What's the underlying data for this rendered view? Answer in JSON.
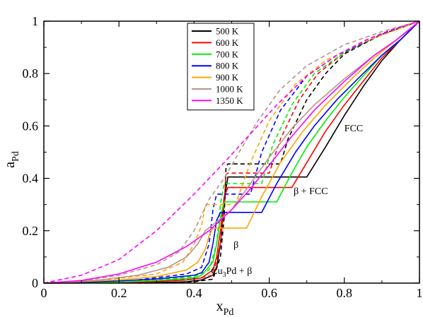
{
  "chart_data": {
    "type": "line",
    "xlabel": "x",
    "xlabel_sub": "Pd",
    "ylabel": "a",
    "ylabel_sub": "Pd",
    "xlim": [
      0,
      1
    ],
    "ylim": [
      0,
      1
    ],
    "xticks": [
      0,
      0.2,
      0.4,
      0.6,
      0.8,
      1
    ],
    "yticks": [
      0,
      0.2,
      0.4,
      0.6,
      0.8,
      1
    ],
    "xtick_labels": [
      "0",
      "0.2",
      "0.4",
      "0.6",
      "0.8",
      "1"
    ],
    "ytick_labels": [
      "0",
      "0.2",
      "0.4",
      "0.6",
      "0.8",
      "1"
    ],
    "legend_position": "top-center",
    "annotations": [
      {
        "text": "FCC",
        "x": 0.8,
        "y": 0.58
      },
      {
        "text": "β + FCC",
        "x": 0.665,
        "y": 0.34
      },
      {
        "text": "β",
        "x": 0.505,
        "y": 0.135
      },
      {
        "text_main": "Cu",
        "text_sub": "3",
        "text_rest": "Pd + β",
        "x": 0.445,
        "y": 0.035
      }
    ],
    "series": [
      {
        "name": "500 K",
        "color": "#000000",
        "solid": [
          [
            0,
            0
          ],
          [
            0.2,
            0.001
          ],
          [
            0.3,
            0.002
          ],
          [
            0.38,
            0.005
          ],
          [
            0.42,
            0.012
          ],
          [
            0.45,
            0.03
          ],
          [
            0.46,
            0.06
          ],
          [
            0.47,
            0.15
          ],
          [
            0.48,
            0.3
          ],
          [
            0.485,
            0.36
          ],
          [
            0.49,
            0.405
          ],
          [
            0.7,
            0.405
          ],
          [
            0.75,
            0.52
          ],
          [
            0.8,
            0.64
          ],
          [
            0.85,
            0.75
          ],
          [
            0.9,
            0.85
          ],
          [
            0.95,
            0.93
          ],
          [
            1,
            1
          ]
        ],
        "dashed": [
          [
            0.25,
            0.0
          ],
          [
            0.4,
            0.005
          ],
          [
            0.45,
            0.015
          ],
          [
            0.47,
            0.1
          ],
          [
            0.48,
            0.25
          ],
          [
            0.485,
            0.44
          ],
          [
            0.49,
            0.455
          ],
          [
            0.63,
            0.455
          ],
          [
            0.65,
            0.55
          ],
          [
            0.7,
            0.7
          ],
          [
            0.75,
            0.8
          ],
          [
            0.8,
            0.875
          ],
          [
            0.9,
            0.95
          ],
          [
            1,
            1
          ]
        ]
      },
      {
        "name": "600 K",
        "color": "#ff0000",
        "solid": [
          [
            0,
            0
          ],
          [
            0.2,
            0.002
          ],
          [
            0.3,
            0.006
          ],
          [
            0.38,
            0.012
          ],
          [
            0.42,
            0.02
          ],
          [
            0.45,
            0.05
          ],
          [
            0.46,
            0.1
          ],
          [
            0.47,
            0.2
          ],
          [
            0.48,
            0.33
          ],
          [
            0.49,
            0.365
          ],
          [
            0.66,
            0.365
          ],
          [
            0.7,
            0.46
          ],
          [
            0.75,
            0.58
          ],
          [
            0.8,
            0.68
          ],
          [
            0.85,
            0.77
          ],
          [
            0.9,
            0.86
          ],
          [
            0.95,
            0.93
          ],
          [
            1,
            1
          ]
        ],
        "dashed": [
          [
            0.25,
            0.004
          ],
          [
            0.4,
            0.015
          ],
          [
            0.45,
            0.03
          ],
          [
            0.47,
            0.15
          ],
          [
            0.48,
            0.3
          ],
          [
            0.485,
            0.415
          ],
          [
            0.49,
            0.42
          ],
          [
            0.6,
            0.42
          ],
          [
            0.63,
            0.55
          ],
          [
            0.68,
            0.7
          ],
          [
            0.73,
            0.8
          ],
          [
            0.8,
            0.88
          ],
          [
            0.9,
            0.95
          ],
          [
            1,
            1
          ]
        ]
      },
      {
        "name": "700 K",
        "color": "#00ee00",
        "solid": [
          [
            0,
            0
          ],
          [
            0.2,
            0.004
          ],
          [
            0.3,
            0.01
          ],
          [
            0.4,
            0.02
          ],
          [
            0.42,
            0.03
          ],
          [
            0.45,
            0.08
          ],
          [
            0.46,
            0.15
          ],
          [
            0.47,
            0.25
          ],
          [
            0.48,
            0.31
          ],
          [
            0.62,
            0.31
          ],
          [
            0.66,
            0.42
          ],
          [
            0.7,
            0.52
          ],
          [
            0.75,
            0.62
          ],
          [
            0.8,
            0.71
          ],
          [
            0.85,
            0.79
          ],
          [
            0.9,
            0.87
          ],
          [
            0.95,
            0.93
          ],
          [
            1,
            1
          ]
        ],
        "dashed": [
          [
            0.25,
            0.008
          ],
          [
            0.4,
            0.025
          ],
          [
            0.44,
            0.05
          ],
          [
            0.46,
            0.15
          ],
          [
            0.47,
            0.3
          ],
          [
            0.48,
            0.38
          ],
          [
            0.58,
            0.38
          ],
          [
            0.61,
            0.53
          ],
          [
            0.66,
            0.68
          ],
          [
            0.72,
            0.8
          ],
          [
            0.8,
            0.88
          ],
          [
            0.9,
            0.95
          ],
          [
            1,
            1
          ]
        ]
      },
      {
        "name": "800 K",
        "color": "#0000ff",
        "solid": [
          [
            0,
            0
          ],
          [
            0.2,
            0.008
          ],
          [
            0.3,
            0.016
          ],
          [
            0.4,
            0.03
          ],
          [
            0.42,
            0.04
          ],
          [
            0.44,
            0.08
          ],
          [
            0.45,
            0.15
          ],
          [
            0.46,
            0.24
          ],
          [
            0.47,
            0.27
          ],
          [
            0.58,
            0.27
          ],
          [
            0.62,
            0.38
          ],
          [
            0.67,
            0.5
          ],
          [
            0.72,
            0.6
          ],
          [
            0.78,
            0.7
          ],
          [
            0.85,
            0.8
          ],
          [
            0.9,
            0.87
          ],
          [
            0.95,
            0.93
          ],
          [
            1,
            1
          ]
        ],
        "dashed": [
          [
            0.25,
            0.012
          ],
          [
            0.38,
            0.035
          ],
          [
            0.42,
            0.06
          ],
          [
            0.44,
            0.15
          ],
          [
            0.45,
            0.28
          ],
          [
            0.46,
            0.34
          ],
          [
            0.55,
            0.34
          ],
          [
            0.58,
            0.5
          ],
          [
            0.63,
            0.66
          ],
          [
            0.7,
            0.79
          ],
          [
            0.78,
            0.87
          ],
          [
            0.9,
            0.95
          ],
          [
            1,
            1
          ]
        ]
      },
      {
        "name": "900 K",
        "color": "#ffa500",
        "solid": [
          [
            0,
            0
          ],
          [
            0.2,
            0.012
          ],
          [
            0.3,
            0.025
          ],
          [
            0.38,
            0.05
          ],
          [
            0.41,
            0.08
          ],
          [
            0.43,
            0.13
          ],
          [
            0.44,
            0.18
          ],
          [
            0.45,
            0.21
          ],
          [
            0.54,
            0.21
          ],
          [
            0.58,
            0.33
          ],
          [
            0.63,
            0.46
          ],
          [
            0.69,
            0.58
          ],
          [
            0.75,
            0.68
          ],
          [
            0.82,
            0.78
          ],
          [
            0.88,
            0.86
          ],
          [
            0.94,
            0.93
          ],
          [
            1,
            1
          ]
        ],
        "dashed": [
          [
            0.15,
            0.01
          ],
          [
            0.3,
            0.035
          ],
          [
            0.37,
            0.08
          ],
          [
            0.4,
            0.15
          ],
          [
            0.42,
            0.22
          ],
          [
            0.43,
            0.3
          ],
          [
            0.51,
            0.3
          ],
          [
            0.55,
            0.46
          ],
          [
            0.6,
            0.62
          ],
          [
            0.67,
            0.76
          ],
          [
            0.75,
            0.85
          ],
          [
            0.85,
            0.92
          ],
          [
            1,
            1
          ]
        ]
      },
      {
        "name": "1000 K",
        "color": "#b8928a",
        "solid": [
          [
            0,
            0
          ],
          [
            0.15,
            0.012
          ],
          [
            0.25,
            0.03
          ],
          [
            0.33,
            0.06
          ],
          [
            0.38,
            0.1
          ],
          [
            0.41,
            0.15
          ],
          [
            0.43,
            0.2
          ],
          [
            0.5,
            0.28
          ],
          [
            0.55,
            0.38
          ],
          [
            0.6,
            0.48
          ],
          [
            0.66,
            0.59
          ],
          [
            0.72,
            0.68
          ],
          [
            0.8,
            0.78
          ],
          [
            0.88,
            0.87
          ],
          [
            0.94,
            0.93
          ],
          [
            1,
            1
          ]
        ],
        "dashed": [
          [
            0.1,
            0.008
          ],
          [
            0.2,
            0.03
          ],
          [
            0.3,
            0.07
          ],
          [
            0.36,
            0.12
          ],
          [
            0.4,
            0.2
          ],
          [
            0.44,
            0.32
          ],
          [
            0.48,
            0.4
          ],
          [
            0.52,
            0.5
          ],
          [
            0.57,
            0.62
          ],
          [
            0.63,
            0.74
          ],
          [
            0.7,
            0.83
          ],
          [
            0.8,
            0.91
          ],
          [
            0.9,
            0.96
          ],
          [
            1,
            1
          ]
        ]
      },
      {
        "name": "1350 K",
        "color": "#ff00ff",
        "solid": [
          [
            0,
            0
          ],
          [
            0.1,
            0.01
          ],
          [
            0.2,
            0.035
          ],
          [
            0.3,
            0.08
          ],
          [
            0.38,
            0.14
          ],
          [
            0.44,
            0.2
          ],
          [
            0.5,
            0.28
          ],
          [
            0.55,
            0.36
          ],
          [
            0.6,
            0.45
          ],
          [
            0.66,
            0.56
          ],
          [
            0.72,
            0.66
          ],
          [
            0.8,
            0.77
          ],
          [
            0.88,
            0.87
          ],
          [
            0.94,
            0.93
          ],
          [
            1,
            1
          ]
        ],
        "dashed": [
          [
            0,
            0
          ],
          [
            0.1,
            0.03
          ],
          [
            0.2,
            0.09
          ],
          [
            0.3,
            0.2
          ],
          [
            0.4,
            0.34
          ],
          [
            0.48,
            0.46
          ],
          [
            0.55,
            0.57
          ],
          [
            0.62,
            0.68
          ],
          [
            0.7,
            0.79
          ],
          [
            0.78,
            0.87
          ],
          [
            0.86,
            0.93
          ],
          [
            0.93,
            0.97
          ],
          [
            1,
            1
          ]
        ]
      }
    ]
  }
}
